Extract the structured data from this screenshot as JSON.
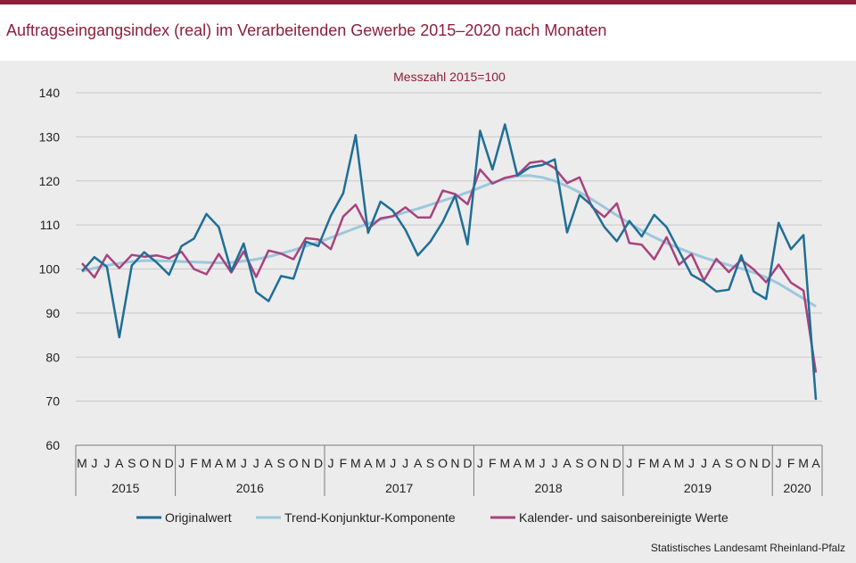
{
  "title": "Auftragseingangsindex (real) im Verarbeitenden Gewerbe 2015–2020 nach Monaten",
  "source": "Statistisches Landesamt Rheinland-Pfalz",
  "chart_data": {
    "type": "line",
    "subtitle": "Messzahl 2015=100",
    "ylim": [
      60,
      140
    ],
    "yticks": [
      60,
      70,
      80,
      90,
      100,
      110,
      120,
      130,
      140
    ],
    "grid": true,
    "legend_position": "bottom",
    "month_labels": [
      "M",
      "J",
      "J",
      "A",
      "S",
      "O",
      "N",
      "D",
      "J",
      "F",
      "M",
      "A",
      "M",
      "J",
      "J",
      "A",
      "S",
      "O",
      "N",
      "D",
      "J",
      "F",
      "M",
      "A",
      "M",
      "J",
      "J",
      "A",
      "S",
      "O",
      "N",
      "D",
      "J",
      "F",
      "M",
      "A",
      "M",
      "J",
      "J",
      "A",
      "S",
      "O",
      "N",
      "D",
      "J",
      "F",
      "M",
      "A",
      "M",
      "J",
      "J",
      "A",
      "S",
      "O",
      "N",
      "D",
      "J",
      "F",
      "M",
      "A"
    ],
    "year_groups": [
      {
        "label": "2015",
        "count": 8
      },
      {
        "label": "2016",
        "count": 12
      },
      {
        "label": "2017",
        "count": 12
      },
      {
        "label": "2018",
        "count": 12
      },
      {
        "label": "2019",
        "count": 12
      },
      {
        "label": "2020",
        "count": 4
      }
    ],
    "series": [
      {
        "name": "Originalwert",
        "color": "#1f6e96",
        "values": [
          99.5,
          102.7,
          100.5,
          84.5,
          100.8,
          103.8,
          101.5,
          98.7,
          105.2,
          106.9,
          112.5,
          109.5,
          99.5,
          105.8,
          94.8,
          92.7,
          98.4,
          97.8,
          106.2,
          105.2,
          112.1,
          117.2,
          130.4,
          108.2,
          115.3,
          113.2,
          108.9,
          103.1,
          106.2,
          110.7,
          116.7,
          105.6,
          131.4,
          122.6,
          132.8,
          121.2,
          123.1,
          123.6,
          124.9,
          108.3,
          116.8,
          114.4,
          109.5,
          106.3,
          110.9,
          107.4,
          112.3,
          109.5,
          104.1,
          98.7,
          97.1,
          94.9,
          95.3,
          103.1,
          94.9,
          93.2,
          110.5,
          104.5,
          107.7,
          70.3
        ]
      },
      {
        "name": "Trend-Konjunktur-Komponente",
        "color": "#9cc8dc",
        "values": [
          99.5,
          100.2,
          100.8,
          101.3,
          101.7,
          101.9,
          101.9,
          101.8,
          101.7,
          101.6,
          101.5,
          101.4,
          101.5,
          101.8,
          102.2,
          102.8,
          103.5,
          104.3,
          105.2,
          106.1,
          107.1,
          108.2,
          109.3,
          110.3,
          111.2,
          112.0,
          112.9,
          113.7,
          114.6,
          115.5,
          116.4,
          117.4,
          118.5,
          119.6,
          120.5,
          121.1,
          121.2,
          120.8,
          120.0,
          118.8,
          117.4,
          115.8,
          114.0,
          112.2,
          110.4,
          108.7,
          107.2,
          105.9,
          104.7,
          103.6,
          102.6,
          101.7,
          100.9,
          100.1,
          99.2,
          98.1,
          96.7,
          95.0,
          93.3,
          91.5
        ]
      },
      {
        "name": "Kalender- und saisonbereinigte Werte",
        "color": "#a8427e",
        "values": [
          101.3,
          98.1,
          103.2,
          100.2,
          103.2,
          102.8,
          103.1,
          102.4,
          103.9,
          100.0,
          98.8,
          103.4,
          99.2,
          104.0,
          98.2,
          104.2,
          103.5,
          102.2,
          107.0,
          106.7,
          104.5,
          111.9,
          114.6,
          109.1,
          111.5,
          112.0,
          114.0,
          111.7,
          111.7,
          117.8,
          117.0,
          114.7,
          122.6,
          119.4,
          120.7,
          121.3,
          124.1,
          124.5,
          122.9,
          119.5,
          120.8,
          114.1,
          111.8,
          114.9,
          105.9,
          105.5,
          102.2,
          107.2,
          101.0,
          103.4,
          97.4,
          102.3,
          99.3,
          102.1,
          99.9,
          97.0,
          101.0,
          96.9,
          95.1,
          76.5
        ]
      }
    ]
  }
}
